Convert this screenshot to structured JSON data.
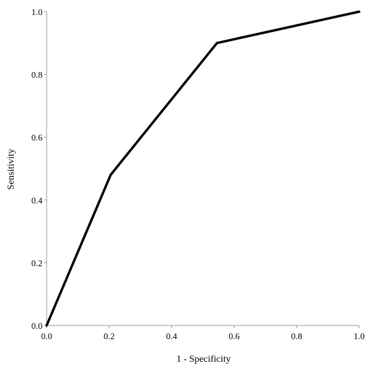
{
  "chart_data": {
    "type": "line",
    "title": "",
    "xlabel": "1 - Specificity",
    "ylabel": "Sensitivity",
    "xlim": [
      0.0,
      1.0
    ],
    "ylim": [
      0.0,
      1.0
    ],
    "x_ticks": [
      "0.0",
      "0.2",
      "0.4",
      "0.6",
      "0.8",
      "1.0"
    ],
    "y_ticks": [
      "0.0",
      "0.2",
      "0.4",
      "0.6",
      "0.8",
      "1.0"
    ],
    "grid": false,
    "legend": "none",
    "series": [
      {
        "x": [
          0.0,
          0.205,
          0.545,
          1.0
        ],
        "y": [
          0.0,
          0.48,
          0.9,
          1.0
        ]
      }
    ],
    "colors": {
      "line": "#000000",
      "axis": "#9a9a9a"
    }
  }
}
